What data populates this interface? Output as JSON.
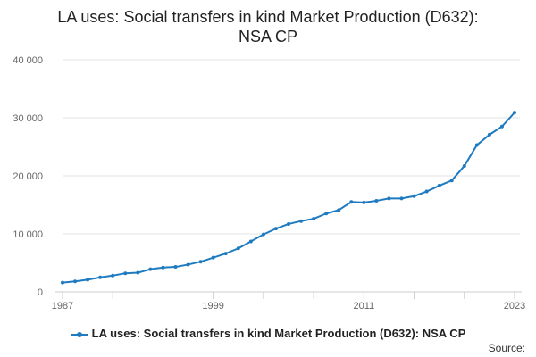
{
  "chart_data": {
    "type": "line",
    "title": "LA uses: Social transfers in kind Market Production (D632): NSA CP",
    "title_lines": [
      "LA uses: Social transfers in kind Market Production (D632):",
      "NSA CP"
    ],
    "xlabel": "",
    "ylabel": "",
    "x": [
      1987,
      1988,
      1989,
      1990,
      1991,
      1992,
      1993,
      1994,
      1995,
      1996,
      1997,
      1998,
      1999,
      2000,
      2001,
      2002,
      2003,
      2004,
      2005,
      2006,
      2007,
      2008,
      2009,
      2010,
      2011,
      2012,
      2013,
      2014,
      2015,
      2016,
      2017,
      2018,
      2019,
      2020,
      2021,
      2022,
      2023
    ],
    "x_tick_labels": [
      "1987",
      "1999",
      "2011",
      "2023"
    ],
    "y_tick_labels": [
      "0",
      "10 000",
      "20 000",
      "30 000",
      "40 000"
    ],
    "ylim": [
      0,
      40000
    ],
    "grid": "horizontal",
    "legend_position": "bottom",
    "color": "#1f7bbf",
    "series": [
      {
        "name": "LA uses: Social transfers in kind Market Production (D632): NSA CP",
        "values": [
          1600,
          1800,
          2100,
          2500,
          2800,
          3200,
          3300,
          3900,
          4200,
          4300,
          4700,
          5200,
          5900,
          6600,
          7500,
          8700,
          9900,
          10900,
          11700,
          12200,
          12600,
          13500,
          14100,
          15500,
          15400,
          15700,
          16100,
          16100,
          16500,
          17300,
          18300,
          19200,
          21700,
          25300,
          27100,
          28500,
          30900
        ]
      }
    ]
  },
  "legend": {
    "label": "LA uses: Social transfers in kind Market Production (D632): NSA CP"
  },
  "source_label": "Source:"
}
